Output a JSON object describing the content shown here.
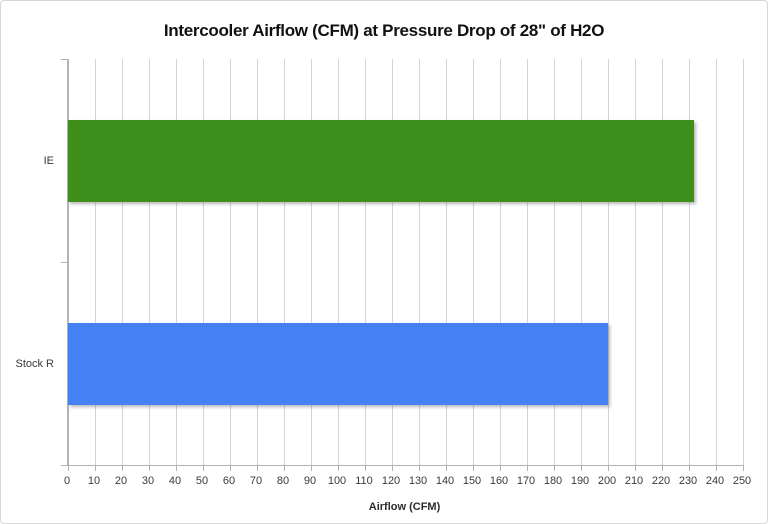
{
  "chart_data": {
    "type": "bar",
    "orientation": "horizontal",
    "title": "Intercooler Airflow (CFM) at Pressure Drop of 28\" of H2O",
    "xlabel": "Airflow (CFM)",
    "ylabel": "",
    "categories": [
      "IE",
      "Stock R"
    ],
    "values": [
      232,
      200
    ],
    "bar_colors": [
      "#3f8f1c",
      "#4481f4"
    ],
    "xlim": [
      0,
      250
    ],
    "xticks": [
      0,
      10,
      20,
      30,
      40,
      50,
      60,
      70,
      80,
      90,
      100,
      110,
      120,
      130,
      140,
      150,
      160,
      170,
      180,
      190,
      200,
      210,
      220,
      230,
      240,
      250
    ],
    "grid": true,
    "legend": false
  },
  "colors": {
    "gridline": "#d4d4d4",
    "axis": "#b3b3b3",
    "tick_text": "#3a3a3a",
    "title_text": "#111111",
    "frame_border": "#d6d6d6",
    "background": "#ffffff"
  }
}
